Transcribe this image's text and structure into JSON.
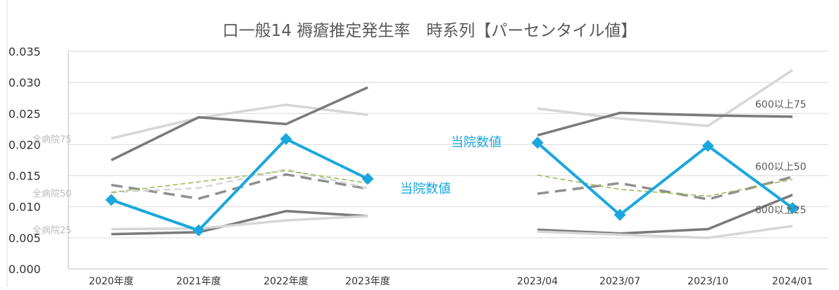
{
  "chart_data": {
    "type": "line",
    "title": "口一般14 褥瘡推定発生率　時系列【パーセンタイル値】",
    "xlabel": "",
    "ylabel": "",
    "ylim": [
      0,
      0.035
    ],
    "y_ticks": [
      "0.000",
      "0.005",
      "0.010",
      "0.015",
      "0.020",
      "0.025",
      "0.030",
      "0.035"
    ],
    "grid": true,
    "colors": {
      "hospital": "#1aa7dd",
      "dark_gray": "#7a7a7a",
      "light_gray": "#d6d6d6",
      "mid_gray": "#8f8f8f",
      "median_green": "#9bbb59",
      "label_blue": "#1aa7dd",
      "label_gray": "#5a5a5a",
      "label_light": "#bdbdbd"
    },
    "panels": [
      {
        "categories": [
          "2020年度",
          "2021年度",
          "2022年度",
          "2023年度"
        ],
        "series": [
          {
            "style": "light",
            "values": [
              0.021,
              0.0243,
              0.0264,
              0.0248
            ]
          },
          {
            "style": "dark",
            "values": [
              0.0175,
              0.0244,
              0.0233,
              0.0292
            ]
          },
          {
            "style": "dashed-gray",
            "values": [
              0.0135,
              0.0113,
              0.0152,
              0.0129
            ]
          },
          {
            "style": "dashed-light",
            "values": [
              0.0123,
              0.013,
              0.016,
              0.013
            ]
          },
          {
            "style": "dashed-green",
            "values": [
              0.0123,
              0.014,
              0.0158,
              0.0138
            ]
          },
          {
            "style": "dark",
            "values": [
              0.0056,
              0.0059,
              0.0093,
              0.0085
            ]
          },
          {
            "style": "light",
            "values": [
              0.0064,
              0.0065,
              0.0078,
              0.0085
            ]
          },
          {
            "style": "hospital",
            "values": [
              0.0111,
              0.0062,
              0.0209,
              0.0145
            ]
          }
        ]
      },
      {
        "categories": [
          "2023/04",
          "2023/07",
          "2023/10",
          "2024/01"
        ],
        "series": [
          {
            "style": "light",
            "values": [
              0.0258,
              0.0242,
              0.023,
              0.032
            ]
          },
          {
            "style": "dark",
            "values": [
              0.0215,
              0.0251,
              0.0247,
              0.0245
            ]
          },
          {
            "style": "dashed-gray",
            "values": [
              0.0121,
              0.0138,
              0.0112,
              0.0148
            ]
          },
          {
            "style": "dashed-green",
            "values": [
              0.0151,
              0.0128,
              0.0117,
              0.0144
            ]
          },
          {
            "style": "dark",
            "values": [
              0.0063,
              0.0057,
              0.0064,
              0.0119
            ]
          },
          {
            "style": "light",
            "values": [
              0.006,
              0.0055,
              0.005,
              0.0069
            ]
          },
          {
            "style": "hospital",
            "values": [
              0.0203,
              0.0087,
              0.0198,
              0.0098
            ]
          }
        ]
      }
    ],
    "annotations": [
      {
        "text": "全病院75",
        "color": "label_light",
        "panel": 0,
        "value": 0.021
      },
      {
        "text": "全病院50",
        "color": "label_light",
        "panel": 0,
        "value": 0.0123
      },
      {
        "text": "全病院25",
        "color": "label_light",
        "panel": 0,
        "value": 0.0064
      },
      {
        "text": "当院数値",
        "color": "label_blue",
        "panel": 0,
        "value": 0.013
      },
      {
        "text": "当院数値",
        "color": "label_blue",
        "panel": 1,
        "value": 0.0203
      },
      {
        "text": "600以上75",
        "color": "label_gray",
        "panel": 1,
        "value": 0.0265
      },
      {
        "text": "600以上50",
        "color": "label_gray",
        "panel": 1,
        "value": 0.0165
      },
      {
        "text": "600以上25",
        "color": "label_gray",
        "panel": 1,
        "value": 0.0095
      }
    ]
  }
}
